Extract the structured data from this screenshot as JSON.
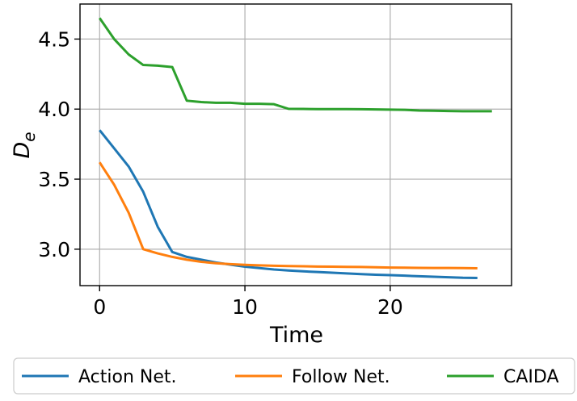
{
  "chart_data": {
    "type": "line",
    "xlabel": "Time",
    "ylabel": "D",
    "ylabel_sub": "e",
    "xlim": [
      -1.35,
      28.35
    ],
    "ylim": [
      2.74,
      4.75
    ],
    "xticks": [
      0,
      10,
      20
    ],
    "yticks": [
      3.0,
      3.5,
      4.0,
      4.5
    ],
    "ytick_labels": [
      "3.0",
      "3.5",
      "4.0",
      "4.5"
    ],
    "grid": true,
    "legend_position": "bottom-outside",
    "series": [
      {
        "name": "Action Net.",
        "color": "#1f77b4",
        "x": [
          0,
          1,
          2,
          3,
          4,
          5,
          6,
          7,
          8,
          9,
          10,
          11,
          12,
          13,
          14,
          15,
          16,
          17,
          18,
          19,
          20,
          21,
          22,
          23,
          24,
          25,
          26
        ],
        "y": [
          3.85,
          3.72,
          3.59,
          3.41,
          3.16,
          2.98,
          2.945,
          2.925,
          2.905,
          2.89,
          2.875,
          2.865,
          2.855,
          2.848,
          2.842,
          2.837,
          2.832,
          2.827,
          2.822,
          2.818,
          2.815,
          2.811,
          2.807,
          2.803,
          2.8,
          2.796,
          2.795
        ]
      },
      {
        "name": "Follow Net.",
        "color": "#ff7f0e",
        "x": [
          0,
          1,
          2,
          3,
          4,
          5,
          6,
          7,
          8,
          9,
          10,
          11,
          12,
          13,
          14,
          15,
          16,
          17,
          18,
          19,
          20,
          21,
          22,
          23,
          24,
          25,
          26
        ],
        "y": [
          3.62,
          3.46,
          3.26,
          3.0,
          2.97,
          2.945,
          2.925,
          2.91,
          2.9,
          2.893,
          2.888,
          2.885,
          2.882,
          2.88,
          2.878,
          2.876,
          2.875,
          2.874,
          2.873,
          2.871,
          2.869,
          2.868,
          2.867,
          2.866,
          2.866,
          2.865,
          2.864
        ]
      },
      {
        "name": "CAIDA",
        "color": "#2ca02c",
        "x": [
          0,
          1,
          2,
          3,
          4,
          5,
          6,
          7,
          8,
          9,
          10,
          11,
          12,
          13,
          14,
          15,
          16,
          17,
          18,
          19,
          20,
          21,
          22,
          23,
          24,
          25,
          26,
          27
        ],
        "y": [
          4.65,
          4.5,
          4.39,
          4.315,
          4.31,
          4.3,
          4.06,
          4.05,
          4.045,
          4.045,
          4.038,
          4.038,
          4.035,
          4.002,
          4.001,
          4.0,
          4.0,
          4.0,
          3.999,
          3.998,
          3.996,
          3.995,
          3.99,
          3.988,
          3.986,
          3.985,
          3.985,
          3.985
        ]
      }
    ]
  }
}
